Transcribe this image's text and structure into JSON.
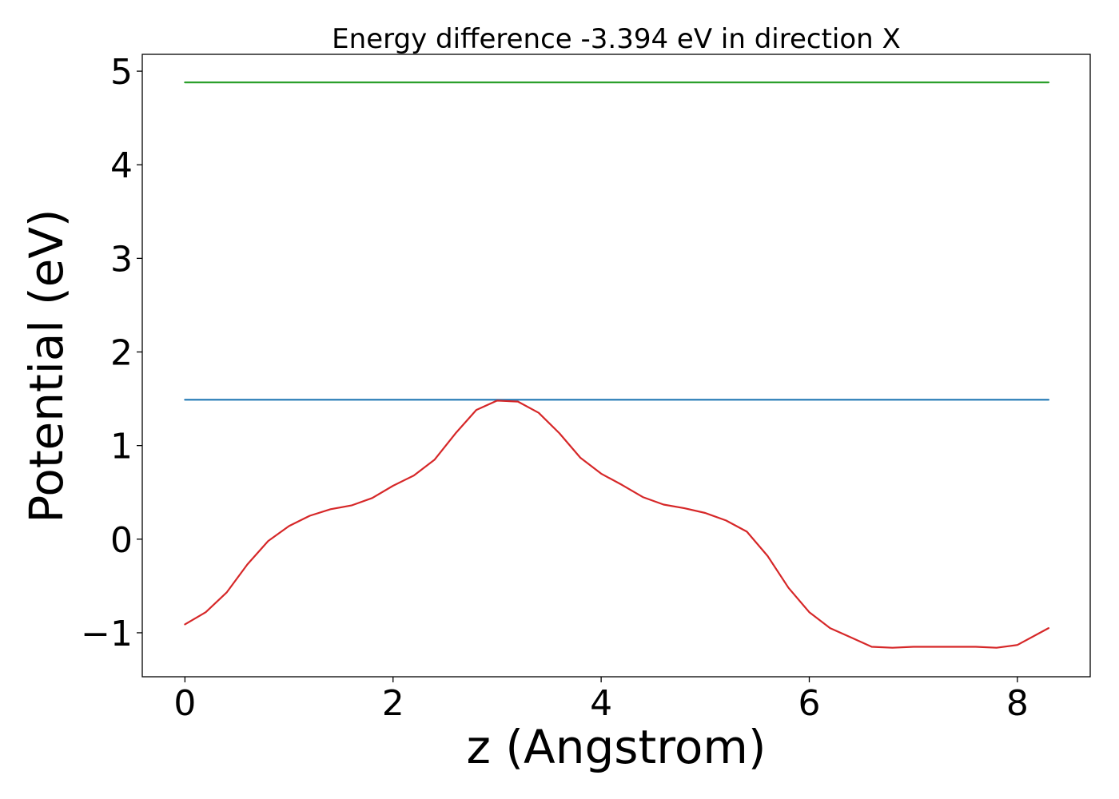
{
  "chart_data": {
    "type": "line",
    "title": "Energy difference -3.394 eV in direction X",
    "xlabel": "z (Angstrom)",
    "ylabel": "Potential (eV)",
    "xlim": [
      -0.41,
      8.7
    ],
    "ylim": [
      -1.47,
      5.18
    ],
    "xticks": [
      0,
      2,
      4,
      6,
      8
    ],
    "xtick_labels": [
      "0",
      "2",
      "4",
      "6",
      "8"
    ],
    "yticks": [
      -1,
      0,
      1,
      2,
      3,
      4,
      5
    ],
    "ytick_labels": [
      "−1",
      "0",
      "1",
      "2",
      "3",
      "4",
      "5"
    ],
    "grid": false,
    "series": [
      {
        "color": "#2ca02c",
        "x": [
          0,
          8.3
        ],
        "y": [
          4.88,
          4.88
        ]
      },
      {
        "color": "#1f77b4",
        "x": [
          0,
          8.3
        ],
        "y": [
          1.49,
          1.49
        ]
      },
      {
        "color": "#d62728",
        "x": [
          0,
          0.2,
          0.4,
          0.6,
          0.8,
          1.0,
          1.2,
          1.4,
          1.6,
          1.8,
          2.0,
          2.2,
          2.4,
          2.6,
          2.8,
          3.0,
          3.2,
          3.4,
          3.6,
          3.8,
          4.0,
          4.2,
          4.4,
          4.6,
          4.8,
          5.0,
          5.2,
          5.4,
          5.6,
          5.8,
          6.0,
          6.2,
          6.4,
          6.6,
          6.8,
          7.0,
          7.2,
          7.4,
          7.6,
          7.8,
          8.0,
          8.3
        ],
        "y": [
          -0.91,
          -0.78,
          -0.57,
          -0.27,
          -0.02,
          0.14,
          0.25,
          0.32,
          0.36,
          0.44,
          0.57,
          0.68,
          0.85,
          1.13,
          1.38,
          1.48,
          1.47,
          1.35,
          1.13,
          0.87,
          0.7,
          0.58,
          0.45,
          0.37,
          0.33,
          0.28,
          0.2,
          0.08,
          -0.18,
          -0.52,
          -0.78,
          -0.95,
          -1.05,
          -1.15,
          -1.16,
          -1.15,
          -1.15,
          -1.15,
          -1.15,
          -1.16,
          -1.13,
          -0.95
        ]
      }
    ]
  }
}
